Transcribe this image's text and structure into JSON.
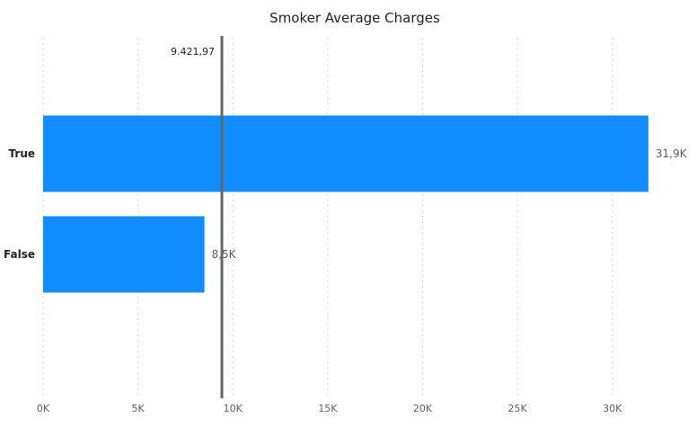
{
  "chart_data": {
    "type": "bar",
    "orientation": "horizontal",
    "title": "Smoker Average Charges",
    "categories": [
      "True",
      "False"
    ],
    "values": [
      31900,
      8500
    ],
    "data_labels": [
      "31,9K",
      "8,5K"
    ],
    "xlim": [
      0,
      32000
    ],
    "x_ticks": [
      0,
      5000,
      10000,
      15000,
      20000,
      25000,
      30000
    ],
    "x_tick_labels": [
      "0K",
      "5K",
      "10K",
      "15K",
      "20K",
      "25K",
      "30K"
    ],
    "grid": true,
    "bar_color": "#118DFF",
    "reference_line": {
      "value": 9421.97,
      "label": "9.421,97",
      "color": "#666666"
    }
  }
}
